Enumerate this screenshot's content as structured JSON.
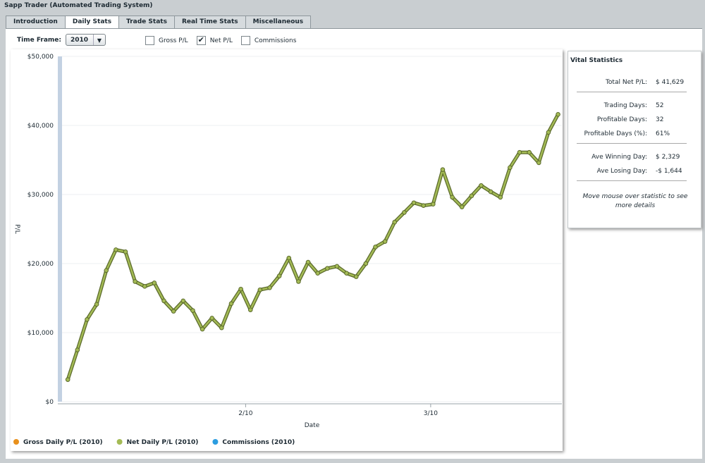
{
  "window": {
    "title": "Sapp Trader (Automated Trading System)"
  },
  "tabs": [
    {
      "label": "Introduction",
      "active": false
    },
    {
      "label": "Daily Stats",
      "active": true
    },
    {
      "label": "Trade Stats",
      "active": false
    },
    {
      "label": "Real Time Stats",
      "active": false
    },
    {
      "label": "Miscellaneous",
      "active": false
    }
  ],
  "controls": {
    "time_frame_label": "Time Frame:",
    "time_frame_value": "2010",
    "checkboxes": [
      {
        "label": "Gross P/L",
        "checked": false
      },
      {
        "label": "Net P/L",
        "checked": true
      },
      {
        "label": "Commissions",
        "checked": false
      }
    ]
  },
  "chart_data": {
    "type": "line",
    "xlabel": "Date",
    "ylabel": "P/L",
    "series": [
      {
        "color": "#a4bb55",
        "values": [
          3200,
          7500,
          11900,
          14100,
          19000,
          22000,
          21700,
          17400,
          16700,
          17200,
          14600,
          13100,
          14600,
          13200,
          10500,
          12100,
          10700,
          14200,
          16300,
          13300,
          16200,
          16500,
          18200,
          20800,
          17400,
          20200,
          18600,
          19300,
          19600,
          18600,
          18100,
          20000,
          22400,
          23200,
          26000,
          27400,
          28800,
          28400,
          28600,
          33600,
          29600,
          28200,
          29800,
          31300,
          30400,
          29600,
          33900,
          36100,
          36100,
          34600,
          39000,
          41600
        ]
      }
    ],
    "legend": [
      {
        "name": "Gross Daily P/L (2010)",
        "color": "#e8901c"
      },
      {
        "name": "Net Daily P/L (2010)",
        "color": "#a4bb55"
      },
      {
        "name": "Commissions (2010)",
        "color": "#2c9de0"
      }
    ],
    "ylim": [
      0,
      50000
    ],
    "yticks": [
      {
        "value": 0,
        "label": "$0"
      },
      {
        "value": 10000,
        "label": "$10,000"
      },
      {
        "value": 20000,
        "label": "$20,000"
      },
      {
        "value": 30000,
        "label": "$30,000"
      },
      {
        "value": 40000,
        "label": "$40,000"
      },
      {
        "value": 50000,
        "label": "$50,000"
      }
    ],
    "xlim": [
      -0.6,
      51.4
    ],
    "xticks": [
      {
        "value": 18.5,
        "label": "2/10"
      },
      {
        "value": 37.75,
        "label": "3/10"
      }
    ],
    "grid": true
  },
  "stats": {
    "title": "Vital Statistics",
    "groups": [
      [
        {
          "label": "Total Net P/L:",
          "value": "$ 41,629"
        }
      ],
      [
        {
          "label": "Trading Days:",
          "value": "52"
        },
        {
          "label": "Profitable Days:",
          "value": "32"
        },
        {
          "label": "Profitable Days (%):",
          "value": "61%"
        }
      ],
      [
        {
          "label": "Ave Winning Day:",
          "value": "$ 2,329"
        },
        {
          "label": "Ave Losing Day:",
          "value": "-$ 1,644"
        }
      ]
    ],
    "note": "Move mouse over statistic to see more details"
  }
}
